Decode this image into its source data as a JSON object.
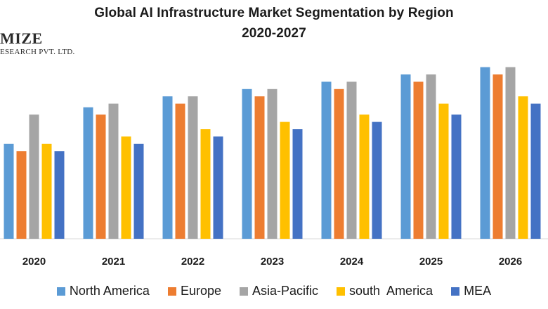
{
  "logo": {
    "big": "MIZE",
    "small": "ESEARCH PVT. LTD."
  },
  "chart_data": {
    "type": "bar",
    "title": "Global AI Infrastructure Market Segmentation by Region",
    "subtitle": "2020-2027",
    "categories": [
      "2020",
      "2021",
      "2022",
      "2023",
      "2024",
      "2025",
      "2026"
    ],
    "series": [
      {
        "name": "North America",
        "color": "#5B9BD5",
        "values": [
          13,
          18,
          19.5,
          20.5,
          21.5,
          22.5,
          23.5
        ]
      },
      {
        "name": "Europe",
        "color": "#ED7D31",
        "values": [
          12,
          17,
          18.5,
          19.5,
          20.5,
          21.5,
          22.5
        ]
      },
      {
        "name": "Asia-Pacific",
        "color": "#A5A5A5",
        "values": [
          17,
          18.5,
          19.5,
          20.5,
          21.5,
          22.5,
          23.5
        ]
      },
      {
        "name": "south  America",
        "color": "#FFC000",
        "values": [
          13,
          14,
          15,
          16,
          17,
          18.5,
          19.5
        ]
      },
      {
        "name": "MEA",
        "color": "#4472C4",
        "values": [
          12,
          13,
          14,
          15,
          16,
          17,
          18.5
        ]
      }
    ],
    "ylim": [
      0,
      25
    ],
    "grid": false,
    "legend": "bottom"
  }
}
